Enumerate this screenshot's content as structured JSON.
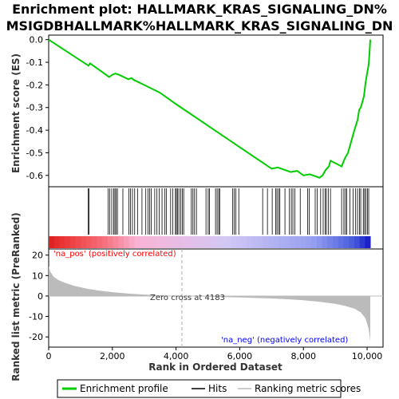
{
  "title_line1": "Enrichment plot: HALLMARK_KRAS_SIGNALING_DN%",
  "title_line2": "MSIGDBHALLMARK%HALLMARK_KRAS_SIGNALING_DN",
  "colors": {
    "profile": "#00cc00",
    "hit": "#000000",
    "metric_fill": "#bbbbbb",
    "pos_label": "#ff0000",
    "neg_label": "#0000ff",
    "zero_line": "#999999"
  },
  "legend": {
    "profile": "Enrichment profile",
    "hits": "Hits",
    "metric": "Ranking metric scores"
  },
  "annotations": {
    "pos": "'na_pos' (positively correlated)",
    "neg": "'na_neg' (negatively correlated)",
    "zero_cross": "Zero cross at 4183"
  },
  "chart_data": [
    {
      "type": "line",
      "ylabel": "Enrichment score (ES)",
      "xlim": [
        0,
        10500
      ],
      "ylim": [
        -0.65,
        0.02
      ],
      "yticks": [
        0.0,
        -0.1,
        -0.2,
        -0.3,
        -0.4,
        -0.5,
        -0.6
      ],
      "ytick_labels": [
        "0.0",
        "-0.1",
        "-0.2",
        "-0.3",
        "-0.4",
        "-0.5",
        "-0.6"
      ],
      "grid": false,
      "series": [
        {
          "name": "Enrichment profile",
          "x": [
            0,
            1250,
            1300,
            1900,
            2000,
            2100,
            2200,
            2500,
            2600,
            2700,
            3000,
            3500,
            4000,
            5000,
            6000,
            7000,
            7200,
            7600,
            7800,
            8000,
            8200,
            8300,
            8500,
            8600,
            8700,
            8800,
            8850,
            9200,
            9300,
            9400,
            9500,
            9600,
            9700,
            9750,
            9800,
            9900,
            9950,
            10000,
            10050,
            10080,
            10100
          ],
          "y": [
            0.0,
            -0.115,
            -0.105,
            -0.165,
            -0.155,
            -0.15,
            -0.155,
            -0.175,
            -0.17,
            -0.18,
            -0.2,
            -0.235,
            -0.285,
            -0.38,
            -0.475,
            -0.57,
            -0.565,
            -0.585,
            -0.58,
            -0.6,
            -0.595,
            -0.6,
            -0.61,
            -0.6,
            -0.575,
            -0.56,
            -0.535,
            -0.56,
            -0.525,
            -0.5,
            -0.45,
            -0.4,
            -0.355,
            -0.31,
            -0.3,
            -0.25,
            -0.19,
            -0.15,
            -0.11,
            -0.05,
            0.0
          ]
        }
      ]
    },
    {
      "type": "hits",
      "hit_positions": [
        1240,
        1270,
        1870,
        1920,
        1980,
        2040,
        2080,
        2120,
        2160,
        2330,
        2520,
        2570,
        2630,
        2700,
        2790,
        2930,
        3050,
        3120,
        3170,
        3220,
        3330,
        3400,
        3470,
        3560,
        3650,
        3700,
        3830,
        3900,
        3980,
        4010,
        4050,
        4090,
        4150,
        4200,
        4240,
        4480,
        4530,
        4580,
        4640,
        4940,
        5010,
        5050,
        5240,
        5290,
        5340,
        5370,
        5780,
        5830,
        5880,
        5970,
        6720,
        6870,
        7020,
        7130,
        7170,
        7220,
        7260,
        7420,
        7560,
        7620,
        7670,
        7730,
        7900,
        8130,
        8180,
        8370,
        8430,
        8540,
        8620,
        8680,
        8720,
        8780,
        8850,
        9200,
        9270,
        9320,
        9360,
        9460,
        9560,
        9640,
        9700,
        9760,
        9800,
        9880,
        9920,
        9960,
        10010,
        10050
      ]
    },
    {
      "type": "area",
      "ylabel": "Ranked list metric (PreRanked)",
      "xlabel": "Rank in Ordered Dataset",
      "xlim": [
        0,
        10500
      ],
      "ylim": [
        -25,
        23
      ],
      "xticks": [
        0,
        2000,
        4000,
        6000,
        8000,
        10000
      ],
      "xtick_labels": [
        "0",
        "2,000",
        "4,000",
        "6,000",
        "8,000",
        "10,000"
      ],
      "yticks": [
        20,
        10,
        0,
        -10,
        -20
      ],
      "ytick_labels": [
        "20",
        "10",
        "0",
        "-10",
        "-20"
      ],
      "zero_cross": 4183,
      "series": [
        {
          "name": "Ranking metric scores",
          "x": [
            0,
            50,
            150,
            300,
            500,
            800,
            1200,
            1600,
            2000,
            2500,
            3000,
            3500,
            4000,
            4183,
            5000,
            6000,
            7000,
            7500,
            8000,
            8500,
            9000,
            9300,
            9600,
            9800,
            9950,
            10050,
            10100
          ],
          "y": [
            14.5,
            12.0,
            9.5,
            7.8,
            6.5,
            5.0,
            3.6,
            2.6,
            1.9,
            1.2,
            0.7,
            0.35,
            0.1,
            0.0,
            -0.3,
            -0.7,
            -1.2,
            -1.6,
            -2.1,
            -2.8,
            -3.8,
            -4.8,
            -6.2,
            -8.0,
            -11.0,
            -16.0,
            -22.0
          ]
        }
      ]
    }
  ]
}
